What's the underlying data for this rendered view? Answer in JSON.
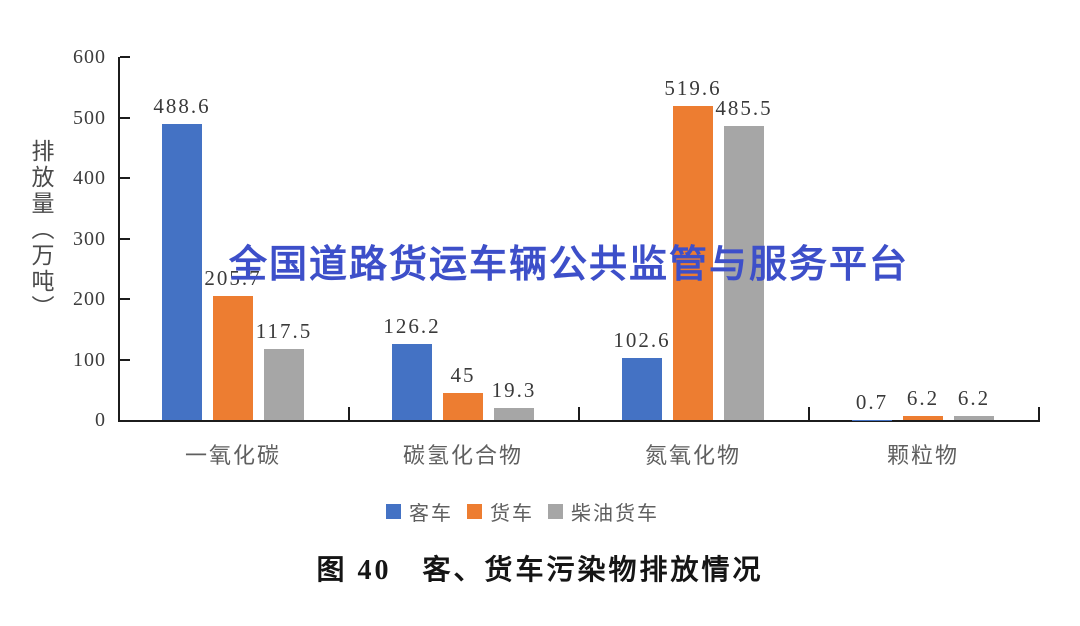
{
  "figure": {
    "watermark": "全国道路货运车辆公共监管与服务平台",
    "caption": "图 40　客、货车污染物排放情况"
  },
  "chart_data": {
    "type": "bar",
    "title": "图 40 客、货车污染物排放情况",
    "xlabel": "",
    "ylabel": "排放量（万吨）",
    "categories": [
      "一氧化碳",
      "碳氢化合物",
      "氮氧化物",
      "颗粒物"
    ],
    "series": [
      {
        "name": "客车",
        "color": "#4472C4",
        "values": [
          488.6,
          126.2,
          102.6,
          0.7
        ]
      },
      {
        "name": "货车",
        "color": "#ED7D31",
        "values": [
          205.7,
          45,
          519.6,
          6.2
        ]
      },
      {
        "name": "柴油货车",
        "color": "#A6A6A6",
        "values": [
          117.5,
          19.3,
          485.5,
          6.2
        ]
      }
    ],
    "ylim": [
      0,
      600
    ],
    "yticks": [
      0,
      100,
      200,
      300,
      400,
      500,
      600
    ],
    "grid": false,
    "legend_position": "bottom",
    "value_labels_shown": true
  },
  "colors": {
    "watermark_text": "#3D4FC9",
    "axis": "#1c1c1c",
    "tick_label_text": "#3d3d3d",
    "category_label_text": "#5f5f5f",
    "caption_text": "#151515"
  }
}
